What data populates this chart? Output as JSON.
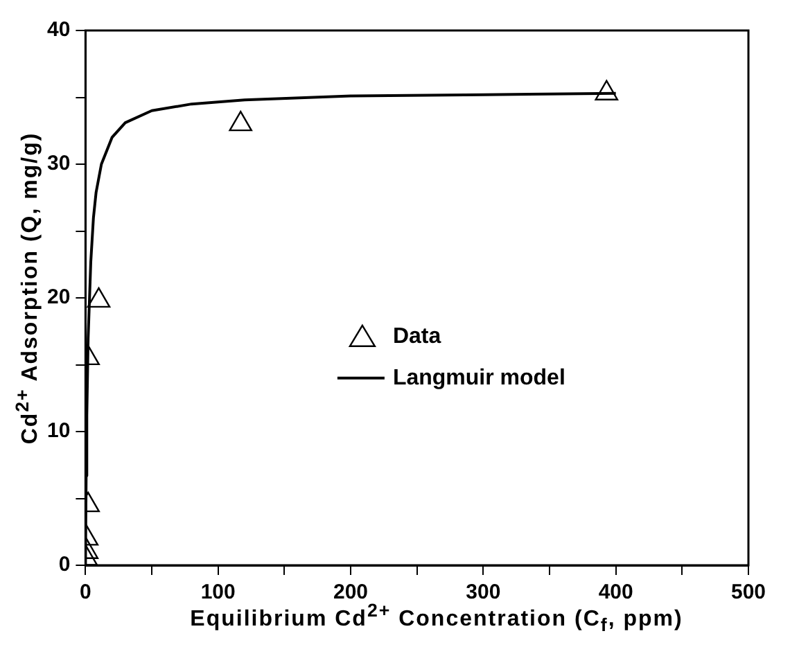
{
  "chart_data": {
    "type": "scatter",
    "xlabel": "Equilibrium Cd$^{2+}$ Concentration (C$_{f}$, ppm)",
    "ylabel": "Cd$^{2+}$ Adsorption (Q, mg/g)",
    "xlim": [
      0,
      500
    ],
    "ylim": [
      0,
      40
    ],
    "xticks": [
      0,
      {
        "value": 50,
        "label": null
      },
      100,
      {
        "value": 150,
        "label": null
      },
      200,
      {
        "value": 250,
        "label": null
      },
      300,
      {
        "value": 350,
        "label": null
      },
      400,
      {
        "value": 450,
        "label": null
      },
      500
    ],
    "yticks": [
      0,
      {
        "value": 5,
        "label": null
      },
      10,
      {
        "value": 15,
        "label": null
      },
      20,
      {
        "value": 25,
        "label": null
      },
      30,
      {
        "value": 35,
        "label": null
      },
      40
    ],
    "legend": "bottom right",
    "marker": "triangle",
    "series": [
      {
        "name": "Data",
        "color": "#000000",
        "x": [
          0.5,
          1,
          1,
          2,
          2,
          10,
          117,
          393
        ],
        "values": [
          0.5,
          1,
          2,
          4.5,
          15.5,
          19.8,
          33,
          35.3
        ]
      },
      {
        "name": "Langmuir model",
        "type": "line",
        "color": "#000000",
        "marker": "none",
        "line_style": "solid",
        "x": [
          0,
          0.5,
          1,
          2,
          4,
          6,
          8,
          12,
          20,
          30,
          50,
          80,
          120,
          200,
          300,
          400
        ],
        "values": [
          0,
          6.7,
          11.2,
          17,
          22.7,
          26,
          27.9,
          30,
          32,
          33.1,
          34,
          34.5,
          34.8,
          35.1,
          35.2,
          35.3
        ]
      }
    ]
  }
}
